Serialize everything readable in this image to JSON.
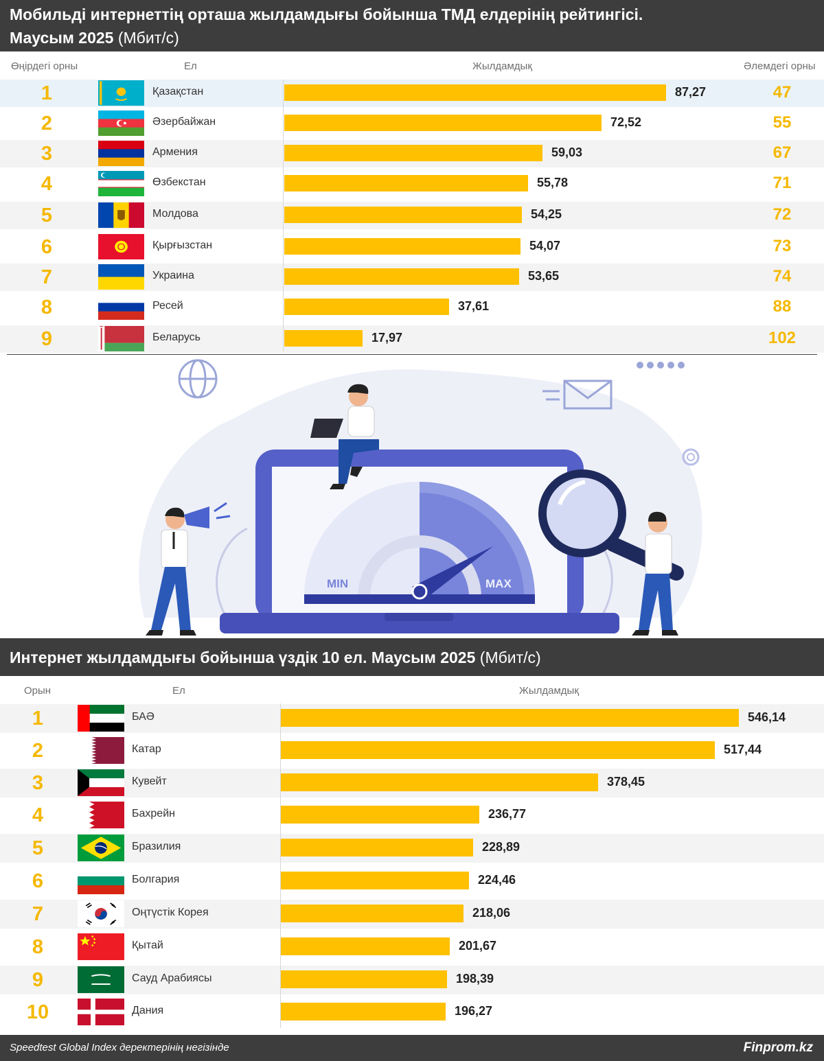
{
  "cis_section": {
    "title_line1": "Мобильді интернеттің орташа жылдамдығы бойынша ТМД елдерінің рейтингісі.",
    "title_line2_bold": "Маусым 2025",
    "title_line2_light": " (Мбит/с)",
    "col_region_rank": "Өңірдегі орны",
    "col_country": "Ел",
    "col_speed": "Жылдамдық",
    "col_world_rank": "Әлемдегі орны"
  },
  "top10_section": {
    "title_bold": "Интернет жылдамдығы бойынша үздік 10 ел. Маусым 2025",
    "title_light": " (Мбит/с)",
    "col_rank": "Орын",
    "col_country": "Ел",
    "col_speed": "Жылдамдық"
  },
  "illustration": {
    "min_label": "MIN",
    "max_label": "MAX"
  },
  "footer": {
    "source": "Speedtest Global Index деректерінің негізінде",
    "brand": "Finprom.kz"
  },
  "colors": {
    "bar": "#ffc000",
    "rank": "#f5b800",
    "header": "#3d3d3d"
  },
  "chart_data": [
    {
      "type": "bar",
      "title": "Мобильді интернеттің орташа жылдамдығы бойынша ТМД елдерінің рейтингісі. Маусым 2025 (Мбит/с)",
      "unit": "Мбит/с",
      "categories": [
        "Қазақстан",
        "Әзербайжан",
        "Армения",
        "Өзбекстан",
        "Молдова",
        "Қырғызстан",
        "Украина",
        "Ресей",
        "Беларусь"
      ],
      "ranks": [
        "1",
        "2",
        "3",
        "4",
        "5",
        "6",
        "7",
        "8",
        "9"
      ],
      "flags": [
        "kz",
        "az",
        "am",
        "uz",
        "md",
        "kg",
        "ua",
        "ru",
        "by"
      ],
      "values": [
        87.27,
        72.52,
        59.03,
        55.78,
        54.25,
        54.07,
        53.65,
        37.61,
        17.97
      ],
      "labels": [
        "87,27",
        "72,52",
        "59,03",
        "55,78",
        "54,25",
        "54,07",
        "53,65",
        "37,61",
        "17,97"
      ],
      "world_ranks": [
        "47",
        "55",
        "67",
        "71",
        "72",
        "73",
        "74",
        "88",
        "102"
      ],
      "highlight_index": 0
    },
    {
      "type": "bar",
      "title": "Интернет жылдамдығы бойынша үздік 10 ел. Маусым 2025 (Мбит/с)",
      "unit": "Мбит/с",
      "categories": [
        "БАӘ",
        "Катар",
        "Кувейт",
        "Бахрейн",
        "Бразилия",
        "Болгария",
        "Оңтүстік Корея",
        "Қытай",
        "Сауд Арабиясы",
        "Дания"
      ],
      "ranks": [
        "1",
        "2",
        "3",
        "4",
        "5",
        "6",
        "7",
        "8",
        "9",
        "10"
      ],
      "flags": [
        "ae",
        "qa",
        "kw",
        "bh",
        "br",
        "bg",
        "kr",
        "cn",
        "sa",
        "dk"
      ],
      "values": [
        546.14,
        517.44,
        378.45,
        236.77,
        228.89,
        224.46,
        218.06,
        201.67,
        198.39,
        196.27
      ],
      "labels": [
        "546,14",
        "517,44",
        "378,45",
        "236,77",
        "228,89",
        "224,46",
        "218,06",
        "201,67",
        "198,39",
        "196,27"
      ]
    }
  ]
}
